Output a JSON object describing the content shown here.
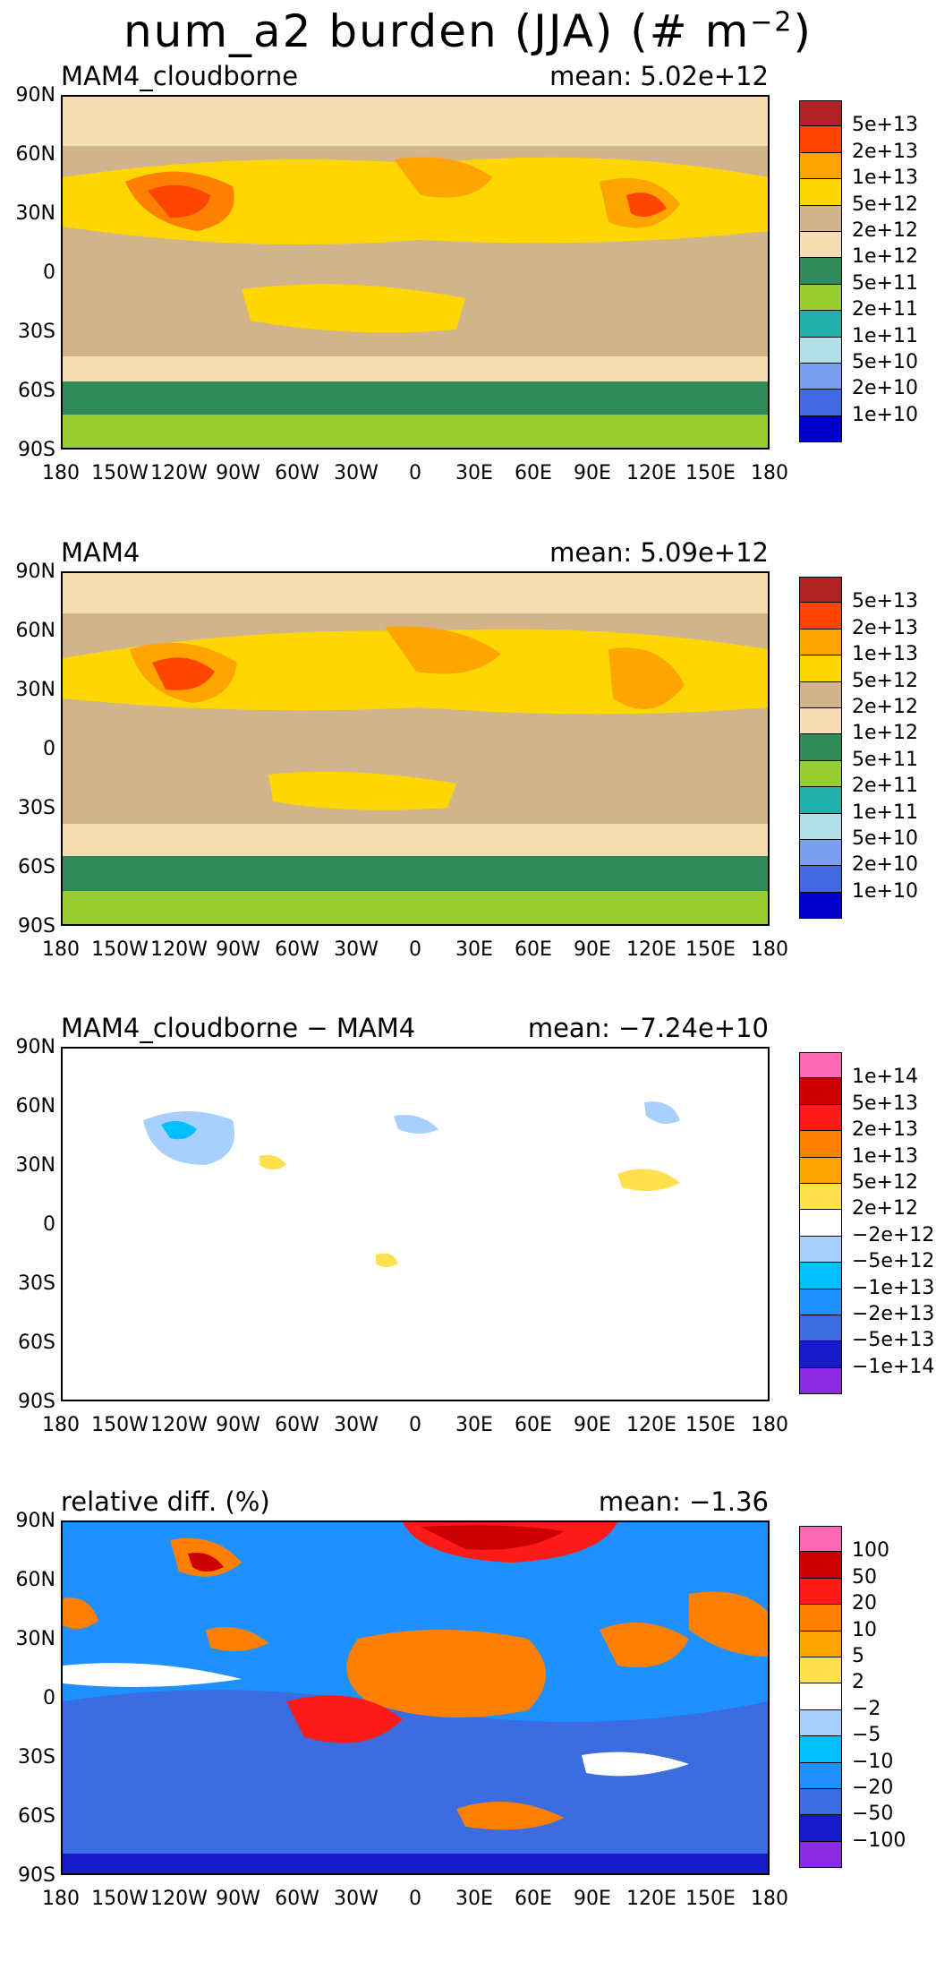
{
  "title": {
    "main": "num_a2 burden (JJA) (# m",
    "sup": "−2",
    "close": ")"
  },
  "lat_labels": [
    "90N",
    "60N",
    "30N",
    "0",
    "30S",
    "60S",
    "90S"
  ],
  "lon_labels": [
    "180",
    "150W",
    "120W",
    "90W",
    "60W",
    "30W",
    "0",
    "30E",
    "60E",
    "90E",
    "120E",
    "150E",
    "180"
  ],
  "panels": [
    {
      "title": "MAM4_cloudborne",
      "mean": "mean: 5.02e+12",
      "colors": [
        "#b22222",
        "#ff4500",
        "#ffa500",
        "#ffd700",
        "#d2b48c",
        "#f5deb3",
        "#2e8b57",
        "#9acd32",
        "#20b2aa",
        "#b0e0e6",
        "#7b9fef",
        "#4169e1",
        "#0000cd"
      ],
      "labels": [
        "5e+13",
        "2e+13",
        "1e+13",
        "5e+12",
        "2e+12",
        "1e+12",
        "5e+11",
        "2e+11",
        "1e+11",
        "5e+10",
        "2e+10",
        "1e+10"
      ]
    },
    {
      "title": "MAM4",
      "mean": "mean: 5.09e+12",
      "colors": [
        "#b22222",
        "#ff4500",
        "#ffa500",
        "#ffd700",
        "#d2b48c",
        "#f5deb3",
        "#2e8b57",
        "#9acd32",
        "#20b2aa",
        "#b0e0e6",
        "#7b9fef",
        "#4169e1",
        "#0000cd"
      ],
      "labels": [
        "5e+13",
        "2e+13",
        "1e+13",
        "5e+12",
        "2e+12",
        "1e+12",
        "5e+11",
        "2e+11",
        "1e+11",
        "5e+10",
        "2e+10",
        "1e+10"
      ]
    },
    {
      "title": "MAM4_cloudborne − MAM4",
      "mean": "mean: −7.24e+10",
      "colors": [
        "#ff69b4",
        "#cc0000",
        "#ff1a1a",
        "#ff7f00",
        "#ffa500",
        "#ffe04d",
        "#ffffff",
        "#a8d0ff",
        "#00bfff",
        "#1e90ff",
        "#3b6de0",
        "#1a1acd",
        "#8a2be2"
      ],
      "labels": [
        "1e+14",
        "5e+13",
        "2e+13",
        "1e+13",
        "5e+12",
        "2e+12",
        "−2e+12",
        "−5e+12",
        "−1e+13",
        "−2e+13",
        "−5e+13",
        "−1e+14"
      ]
    },
    {
      "title": "relative diff. (%)",
      "mean": "mean: −1.36",
      "colors": [
        "#ff69b4",
        "#cc0000",
        "#ff1a1a",
        "#ff7f00",
        "#ffa500",
        "#ffe04d",
        "#ffffff",
        "#a8d0ff",
        "#00bfff",
        "#1e90ff",
        "#3b6de0",
        "#1a1acd",
        "#8a2be2"
      ],
      "labels": [
        "100",
        "50",
        "20",
        "10",
        "5",
        "2",
        "−2",
        "−5",
        "−10",
        "−20",
        "−50",
        "−100"
      ]
    }
  ]
}
